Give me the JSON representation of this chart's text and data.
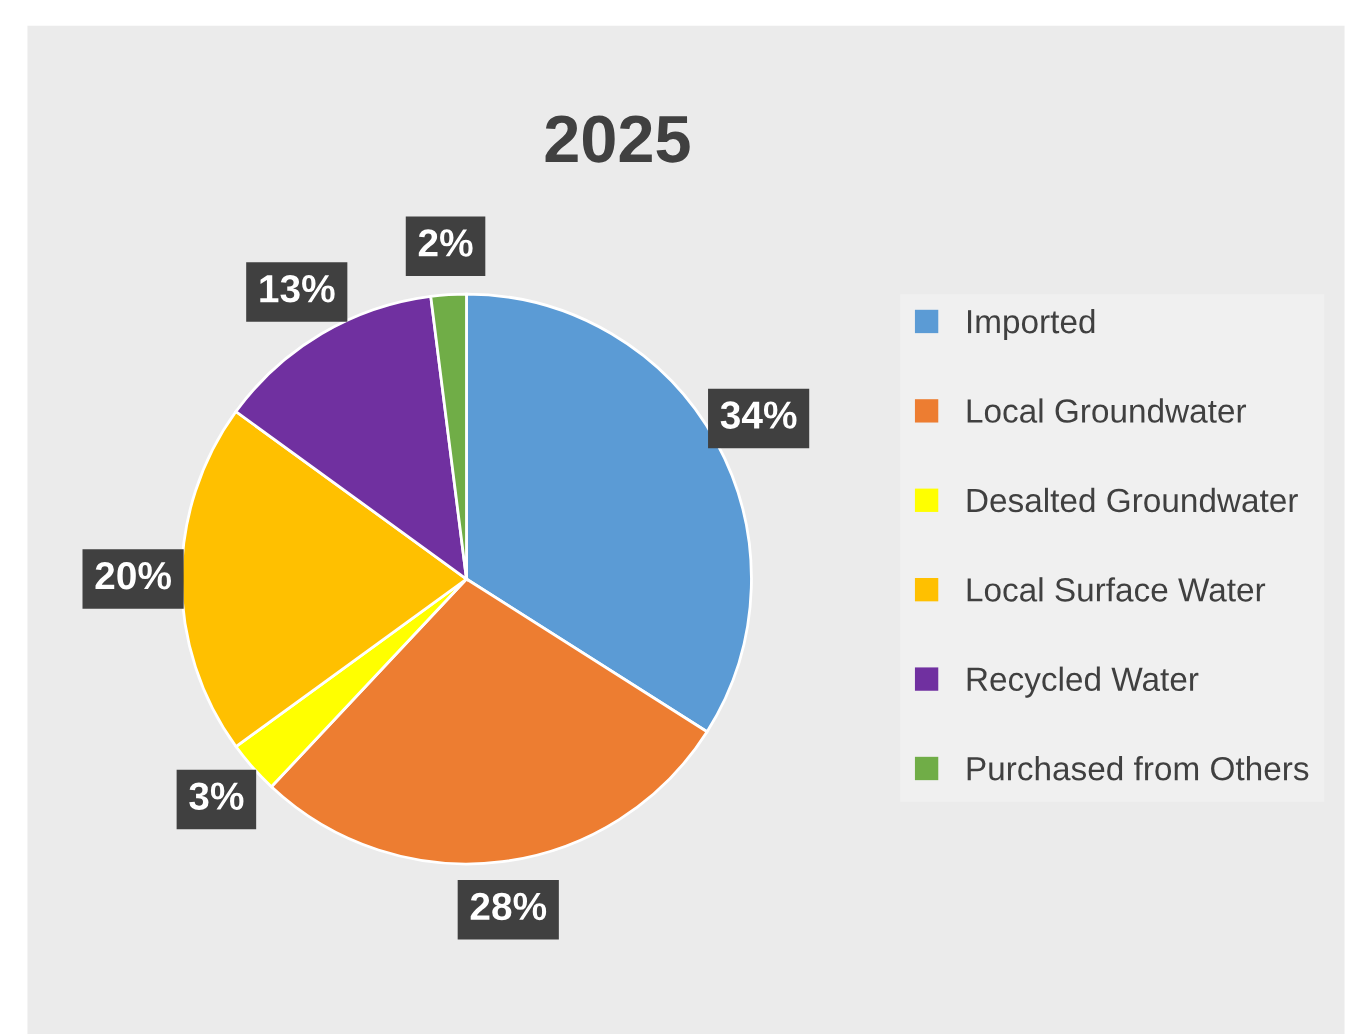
{
  "chart_data": {
    "type": "pie",
    "title": "2025",
    "categories": [
      "Imported",
      "Local Groundwater",
      "Desalted Groundwater",
      "Local Surface Water",
      "Recycled Water",
      "Purchased from Others"
    ],
    "values": [
      34,
      28,
      3,
      20,
      13,
      2
    ],
    "colors": [
      "#5b9bd5",
      "#ed7d31",
      "#ffff00",
      "#ffc000",
      "#7030a0",
      "#70ad47"
    ],
    "value_labels": [
      "34%",
      "28%",
      "3%",
      "20%",
      "13%",
      "2%"
    ],
    "legend": "right"
  }
}
